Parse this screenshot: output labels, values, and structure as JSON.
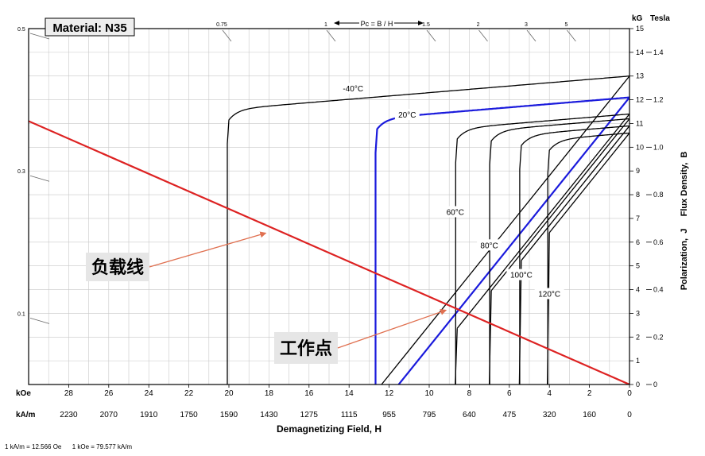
{
  "chart_data": {
    "type": "line",
    "title": "Material: N35",
    "xlabel": "Demagnetizing Field, H",
    "ylabel": "Polarization,  J     Flux Density,  B",
    "x_unit_koe": "kOe",
    "x_unit_kam": "kA/m",
    "y_unit_kg": "kG",
    "y_unit_tesla": "Tesla",
    "xlim": [
      30,
      0
    ],
    "ylim": [
      0,
      15
    ],
    "grid": true,
    "x_ticks_koe": [
      "28",
      "26",
      "24",
      "22",
      "20",
      "18",
      "16",
      "14",
      "12",
      "10",
      "8",
      "6",
      "4",
      "2",
      "0"
    ],
    "x_ticks_kam": [
      "2230",
      "2070",
      "1910",
      "1750",
      "1590",
      "1430",
      "1275",
      "1115",
      "955",
      "795",
      "640",
      "475",
      "320",
      "160",
      "0"
    ],
    "y_ticks_kg": [
      "0",
      "1",
      "2",
      "3",
      "4",
      "5",
      "6",
      "7",
      "8",
      "9",
      "10",
      "11",
      "12",
      "13",
      "14",
      "15"
    ],
    "y_ticks_tesla": [
      "0",
      "0.2",
      "0.4",
      "0.6",
      "0.8",
      "1.0",
      "1.2",
      "1.4"
    ],
    "pc_label": "Pc = B / H",
    "pc_ticks": [
      {
        "label": "0.5",
        "kind": "left",
        "y": 15.0
      },
      {
        "label": "0.3",
        "kind": "left",
        "y": 9.0
      },
      {
        "label": "0.1",
        "kind": "left",
        "y": 3.0
      },
      {
        "label": "0.75",
        "kind": "top",
        "x": 20.2
      },
      {
        "label": "1",
        "kind": "top",
        "x": 15.0
      },
      {
        "label": "1.5",
        "kind": "top",
        "x": 10.0
      },
      {
        "label": "2",
        "kind": "top",
        "x": 7.4
      },
      {
        "label": "3",
        "kind": "top",
        "x": 5.0
      },
      {
        "label": "5",
        "kind": "top",
        "x": 3.0
      }
    ],
    "series": [
      {
        "name": "-40°C",
        "color": "#000000",
        "br": 13.0,
        "hcj": 20.0,
        "label_at": [
          13.8,
          12.45
        ]
      },
      {
        "name": "20°C",
        "color": "#1a1adc",
        "br": 12.1,
        "hcj": 12.6,
        "label_at": [
          11.1,
          11.35
        ]
      },
      {
        "name": "60°C",
        "color": "#000000",
        "br": 11.4,
        "hcj": 8.6,
        "label_at": [
          8.7,
          7.25
        ]
      },
      {
        "name": "80°C",
        "color": "#000000",
        "br": 11.2,
        "hcj": 6.9,
        "label_at": [
          7.0,
          5.85
        ]
      },
      {
        "name": "100°C",
        "color": "#000000",
        "br": 10.9,
        "hcj": 5.4,
        "label_at": [
          5.4,
          4.6
        ]
      },
      {
        "name": "120°C",
        "color": "#000000",
        "br": 10.6,
        "hcj": 4.0,
        "label_at": [
          4.0,
          3.8
        ]
      }
    ],
    "load_line": {
      "color": "#dd2222",
      "points": [
        [
          30,
          11.1
        ],
        [
          0,
          0
        ]
      ]
    },
    "operating_point": [
      8.6,
      3.15
    ],
    "annotations": [
      {
        "text": "负载线",
        "target": [
          18.0,
          6.45
        ]
      },
      {
        "text": "工作点",
        "target": [
          9.0,
          3.2
        ]
      }
    ],
    "footnote": "1 kA/m = 12.566 Oe      1 kOe = 79.577 kA/m"
  }
}
